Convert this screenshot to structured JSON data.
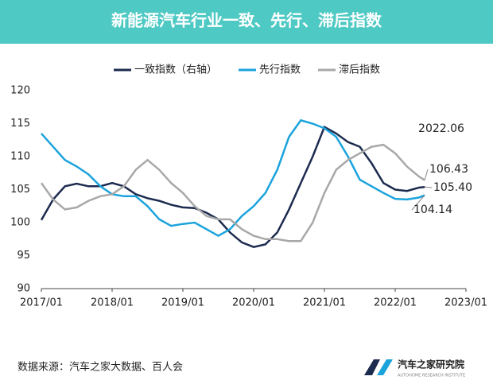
{
  "chart_data": {
    "type": "line",
    "title": "新能源汽车行业一致、先行、滞后指数",
    "source": "数据来源：汽车之家大数据、百人会",
    "logo": {
      "name": "汽车之家研究院",
      "sub": "AUTOHOME RESEARCH INSTITUTE"
    },
    "annotation": "2022.06",
    "x": [
      "2017/01",
      "2017/03",
      "2017/05",
      "2017/07",
      "2017/09",
      "2017/11",
      "2018/01",
      "2018/03",
      "2018/05",
      "2018/07",
      "2018/09",
      "2018/11",
      "2019/01",
      "2019/03",
      "2019/05",
      "2019/07",
      "2019/09",
      "2019/11",
      "2020/01",
      "2020/03",
      "2020/05",
      "2020/07",
      "2020/09",
      "2020/11",
      "2021/01",
      "2021/03",
      "2021/05",
      "2021/07",
      "2021/09",
      "2021/11",
      "2022/01",
      "2022/03",
      "2022/05",
      "2022/06"
    ],
    "series": [
      {
        "name": "一致指数（右轴）",
        "color": "#1c2b4f",
        "values": [
          100.4,
          103.5,
          105.5,
          105.9,
          105.5,
          105.5,
          106,
          105.5,
          104.3,
          103.7,
          103.3,
          102.7,
          102.3,
          102.2,
          101.5,
          100.5,
          98.5,
          97,
          96.3,
          96.7,
          98.5,
          102,
          106,
          110,
          114.5,
          113.5,
          112.2,
          111.5,
          109,
          106,
          105,
          104.8,
          105.3,
          105.4
        ],
        "value_labels": [
          null,
          null,
          null,
          null,
          null,
          null,
          null,
          null,
          null,
          null,
          null,
          null,
          null,
          null,
          null,
          null,
          null,
          null,
          null,
          null,
          null,
          null,
          null,
          null,
          null,
          null,
          null,
          null,
          null,
          null,
          null,
          null,
          null,
          "105.40"
        ]
      },
      {
        "name": "先行指数",
        "color": "#1ba3dc",
        "values": [
          113.5,
          111.5,
          109.5,
          108.5,
          107.3,
          105.5,
          104.3,
          104,
          104,
          102.5,
          100.5,
          99.5,
          99.8,
          100,
          99,
          98,
          99,
          101,
          102.5,
          104.5,
          108,
          113,
          115.5,
          115,
          114.3,
          113,
          110,
          106.5,
          105.5,
          104.5,
          103.6,
          103.5,
          103.8,
          104.14
        ],
        "value_labels": [
          null,
          null,
          null,
          null,
          null,
          null,
          null,
          null,
          null,
          null,
          null,
          null,
          null,
          null,
          null,
          null,
          null,
          null,
          null,
          null,
          null,
          null,
          null,
          null,
          null,
          null,
          null,
          null,
          null,
          null,
          null,
          null,
          null,
          "104.14"
        ]
      },
      {
        "name": "滞后指数",
        "color": "#a8a8a8",
        "values": [
          106,
          103.5,
          102,
          102.3,
          103.3,
          104,
          104.3,
          105.5,
          108,
          109.5,
          108,
          106,
          104.5,
          102.5,
          101,
          100.5,
          100.5,
          99,
          98,
          97.5,
          97.5,
          97.2,
          97.2,
          100,
          104.5,
          108,
          109.5,
          110.5,
          111.5,
          111.8,
          110.5,
          108.5,
          107,
          106.43
        ],
        "value_labels": [
          null,
          null,
          null,
          null,
          null,
          null,
          null,
          null,
          null,
          null,
          null,
          null,
          null,
          null,
          null,
          null,
          null,
          null,
          null,
          null,
          null,
          null,
          null,
          null,
          null,
          null,
          null,
          null,
          null,
          null,
          null,
          null,
          null,
          "106.43"
        ]
      }
    ],
    "xlim": [
      "2017/01",
      "2023/01"
    ],
    "xticks": [
      "2017/01",
      "2018/01",
      "2019/01",
      "2020/01",
      "2021/01",
      "2022/01",
      "2023/01"
    ],
    "ylim": [
      90,
      120
    ],
    "yticks": [
      90,
      95,
      100,
      105,
      110,
      115,
      120
    ],
    "grid": false,
    "legend": "top"
  }
}
